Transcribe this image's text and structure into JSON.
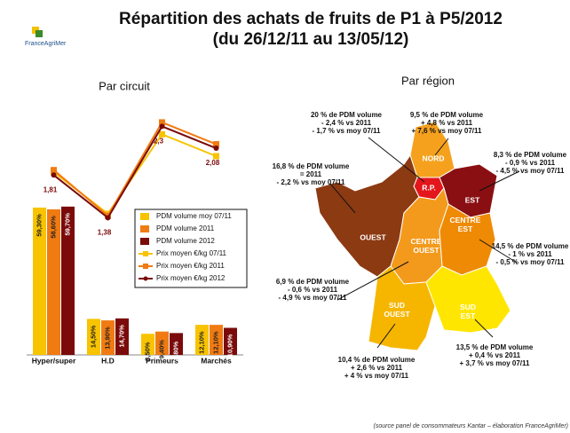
{
  "header": {
    "title_lines": [
      "Répartition des achats de fruits de P1 à P5/2012",
      "(du 26/12/11 au 13/05/12)"
    ],
    "logo": "FranceAgriMer"
  },
  "chart_data": {
    "type": "bar",
    "title": "Par circuit",
    "categories": [
      "Hyper/super",
      "H.D",
      "Primeurs",
      "Marchés"
    ],
    "ylim": [
      0,
      100
    ],
    "y2lim": [
      0,
      2.5
    ],
    "series": [
      {
        "name": "PDM volume moy 07/11",
        "color": "#f8c300",
        "label_color": "#222222",
        "values": [
          59.3,
          14.5,
          8.5,
          12.1
        ],
        "value_labels": [
          "59,30%",
          "14,50%",
          "8,50%",
          "12,10%"
        ]
      },
      {
        "name": "PDM volume 2011",
        "color": "#f07b12",
        "label_color": "#222222",
        "values": [
          58.6,
          13.9,
          9.4,
          12.1
        ],
        "value_labels": [
          "58,60%",
          "13,90%",
          "9,40%",
          "12,10%"
        ]
      },
      {
        "name": "PDM volume 2012",
        "color": "#7b0a0a",
        "label_color": "#ffffff",
        "values": [
          59.7,
          14.7,
          8.8,
          10.9
        ],
        "value_labels": [
          "59,70%",
          "14,70%",
          "8,80%",
          "10,90%"
        ]
      },
      {
        "name": "Prix moyen €/kg 07/11",
        "type": "line",
        "axis": "y2",
        "marker": "square",
        "color": "#f8c300",
        "values": [
          1.84,
          1.42,
          2.22,
          2.0
        ]
      },
      {
        "name": "Prix moyen €/kg 2011",
        "type": "line",
        "axis": "y2",
        "marker": "square",
        "color": "#f07b12",
        "values": [
          1.86,
          1.4,
          2.34,
          2.12
        ]
      },
      {
        "name": "Prix moyen €/kg 2012",
        "type": "line",
        "axis": "y2",
        "marker": "circle",
        "color": "#7b0a0a",
        "values": [
          1.81,
          1.38,
          2.3,
          2.08
        ],
        "value_labels": [
          "1,81",
          "1,38",
          "2,3",
          "2,08"
        ]
      }
    ]
  },
  "map": {
    "title": "Par région",
    "regions": [
      {
        "label": "NORD",
        "color": "#f5a11e"
      },
      {
        "label": "R.P.",
        "color": "#e3161b"
      },
      {
        "label": "EST",
        "color": "#8a0f12"
      },
      {
        "label": "OUEST",
        "color": "#8c3a12"
      },
      {
        "label": "CENTRE OUEST",
        "color": "#f39a1c"
      },
      {
        "label": "CENTRE EST",
        "color": "#ef8a05"
      },
      {
        "label": "SUD OUEST",
        "color": "#f6b600"
      },
      {
        "label": "SUD EST",
        "color": "#ffe600"
      }
    ],
    "annotations": [
      [
        "20 % de PDM volume",
        "- 2,4 % vs 2011",
        "- 1,7 % vs moy 07/11"
      ],
      [
        "9,5 % de PDM volume",
        "+ 4,8 % vs 2011",
        "+ 7,6 % vs moy 07/11"
      ],
      [
        "8,3 % de PDM volume",
        "- 0,9 % vs 2011",
        "- 4,5 % vs moy 07/11"
      ],
      [
        "16,8 % de PDM volume",
        "= 2011",
        "- 2,2 % vs moy 07/11"
      ],
      [
        "14,5 % de PDM volume",
        "- 1 % vs 2011",
        "- 0,5 % vs moy 07/11"
      ],
      [
        "6,9 % de PDM volume",
        "- 0,6 % vs 2011",
        "- 4,9 % vs moy 07/11"
      ],
      [
        "13,5 % de PDM volume",
        "+ 0,4 % vs 2011",
        "+ 3,7 % vs moy 07/11"
      ],
      [
        "10,4 % de PDM volume",
        "+ 2,6 % vs 2011",
        "+ 4 % vs moy 07/11"
      ]
    ]
  },
  "source": "(source panel de consommateurs Kantar – élaboration FranceAgriMer)"
}
